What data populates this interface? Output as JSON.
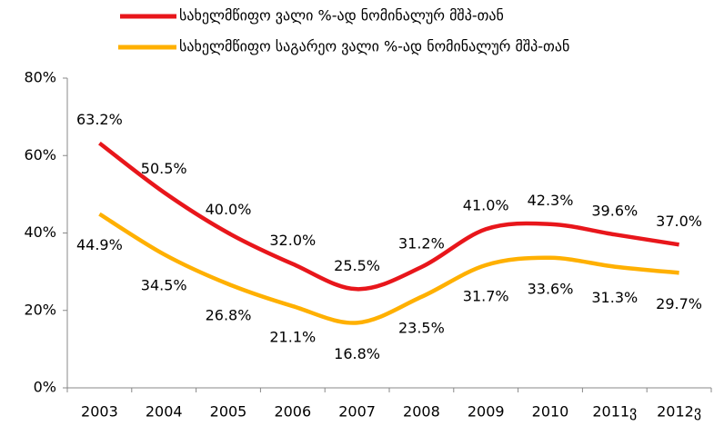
{
  "chart_data": {
    "type": "line",
    "categories": [
      "2003",
      "2004",
      "2005",
      "2006",
      "2007",
      "2008",
      "2009",
      "2010",
      "2011ვ",
      "2012ვ"
    ],
    "series": [
      {
        "name": "სახელმწიფო ვალი %-ად ნომინალურ მშპ-თან",
        "color": "#e8161b",
        "values": [
          63.2,
          50.5,
          40.0,
          32.0,
          25.5,
          31.2,
          41.0,
          42.3,
          39.6,
          37.0
        ],
        "value_labels": [
          "63.2%",
          "50.5%",
          "40.0%",
          "32.0%",
          "25.5%",
          "31.2%",
          "41.0%",
          "42.3%",
          "39.6%",
          "37.0%"
        ]
      },
      {
        "name": "სახელმწიფო საგარეო ვალი %-ად ნომინალურ მშპ-თან",
        "color": "#ffb000",
        "values": [
          44.9,
          34.5,
          26.8,
          21.1,
          16.8,
          23.5,
          31.7,
          33.6,
          31.3,
          29.7
        ],
        "value_labels": [
          "44.9%",
          "34.5%",
          "26.8%",
          "21.1%",
          "16.8%",
          "23.5%",
          "31.7%",
          "33.6%",
          "31.3%",
          "29.7%"
        ]
      }
    ],
    "ylim": [
      0,
      80
    ],
    "yticks": [
      {
        "value": 0,
        "label": "0%"
      },
      {
        "value": 20,
        "label": "20%"
      },
      {
        "value": 40,
        "label": "40%"
      },
      {
        "value": 60,
        "label": "60%"
      },
      {
        "value": 80,
        "label": "80%"
      }
    ],
    "grid": false
  }
}
